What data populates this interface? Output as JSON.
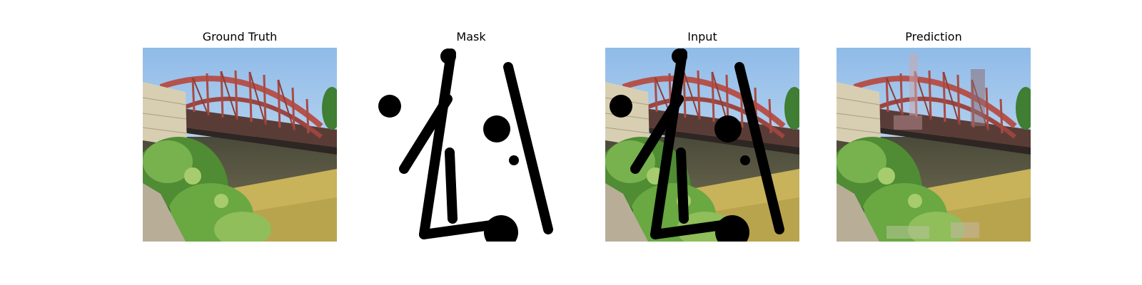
{
  "panels": [
    {
      "title": "Ground Truth"
    },
    {
      "title": "Mask"
    },
    {
      "title": "Input"
    },
    {
      "title": "Prediction"
    }
  ],
  "colors": {
    "sky": "#a9c9ea",
    "bridge": "#b5524c",
    "stone": "#d9d2b8",
    "foliage": "#5f9a3d",
    "dry_grass": "#c9b45a",
    "mask": "#000000"
  }
}
